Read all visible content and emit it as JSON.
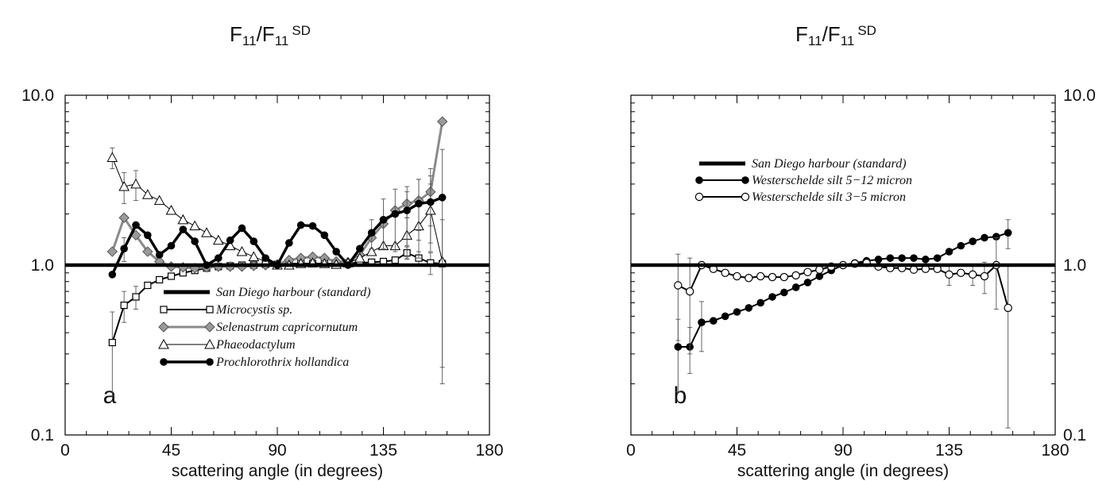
{
  "chart_data": [
    {
      "panel": "a",
      "type": "line",
      "title_main": "F",
      "title_sub1": "11",
      "title_mid": "/F",
      "title_sub2": "11",
      "title_sup": "SD",
      "xlabel": "scattering angle (in degrees)",
      "xlim": [
        0,
        180
      ],
      "xticks": [
        "0",
        "45",
        "90",
        "135",
        "180"
      ],
      "ylim": [
        0.1,
        10
      ],
      "yscale": "log",
      "yticks": [
        "0.1",
        "1.0",
        "10.0"
      ],
      "ytick_side": "left",
      "letter": "a",
      "legend_position": "bottom-center",
      "series": [
        {
          "name": "San Diego harbour (standard)",
          "style": "thick",
          "marker": "none",
          "color": "#000000",
          "x": [
            0,
            180
          ],
          "y": [
            1.0,
            1.0
          ]
        },
        {
          "name": "Microcystis sp.",
          "style": "solid",
          "marker": "open-square",
          "color": "#000000",
          "x": [
            20,
            25,
            30,
            35,
            40,
            45,
            50,
            55,
            60,
            65,
            70,
            75,
            80,
            85,
            90,
            95,
            100,
            105,
            110,
            115,
            120,
            125,
            130,
            135,
            140,
            145,
            150,
            155,
            160
          ],
          "y": [
            0.35,
            0.58,
            0.65,
            0.76,
            0.82,
            0.86,
            0.9,
            0.93,
            0.96,
            0.98,
            0.99,
            1.0,
            1.0,
            1.01,
            1.01,
            1.02,
            1.02,
            1.02,
            1.02,
            1.02,
            1.03,
            1.03,
            1.04,
            1.05,
            1.07,
            1.18,
            1.1,
            1.03,
            1.02
          ],
          "errors": [
            0.18,
            0.12,
            0.1,
            0,
            0,
            0,
            0,
            0,
            0,
            0,
            0,
            0,
            0,
            0,
            0,
            0,
            0,
            0,
            0,
            0,
            0,
            0,
            0,
            0,
            0,
            0.1,
            0.1,
            0.15,
            0
          ]
        },
        {
          "name": "Selenastrum capricornutum",
          "style": "gray",
          "marker": "filled-diamond",
          "color": "#888888",
          "x": [
            20,
            25,
            30,
            35,
            40,
            45,
            50,
            55,
            60,
            65,
            70,
            75,
            80,
            85,
            90,
            95,
            100,
            105,
            110,
            115,
            120,
            125,
            130,
            135,
            140,
            145,
            150,
            155,
            160
          ],
          "y": [
            1.2,
            1.9,
            1.5,
            1.2,
            1.05,
            0.98,
            0.97,
            0.96,
            0.97,
            0.98,
            0.98,
            0.98,
            0.99,
            1.0,
            1.01,
            1.07,
            1.1,
            1.12,
            1.1,
            1.05,
            1.04,
            1.15,
            1.45,
            1.75,
            2.1,
            2.3,
            2.4,
            2.7,
            7.0
          ],
          "errors": [
            0,
            0,
            0,
            0,
            0,
            0,
            0,
            0,
            0,
            0,
            0,
            0,
            0,
            0,
            0,
            0,
            0,
            0,
            0,
            0,
            0,
            0,
            0,
            0,
            0,
            0.4,
            0.8,
            1.0,
            0
          ]
        },
        {
          "name": "Phaeodactylum",
          "style": "thin",
          "marker": "open-triangle",
          "color": "#000000",
          "x": [
            20,
            25,
            30,
            35,
            40,
            45,
            50,
            55,
            60,
            65,
            70,
            75,
            80,
            85,
            90,
            95,
            100,
            105,
            110,
            115,
            120,
            125,
            130,
            135,
            140,
            145,
            150,
            155,
            160
          ],
          "y": [
            4.3,
            2.9,
            3.0,
            2.6,
            2.4,
            2.1,
            1.85,
            1.7,
            1.55,
            1.4,
            1.3,
            1.2,
            1.12,
            1.05,
            1.0,
            1.0,
            1.02,
            1.03,
            1.02,
            1.01,
            1.03,
            1.1,
            1.2,
            1.3,
            1.3,
            1.5,
            1.7,
            2.1,
            1.05
          ],
          "errors": [
            0.6,
            0.6,
            0.6,
            0,
            0,
            0,
            0,
            0,
            0,
            0,
            0,
            0,
            0,
            0,
            0,
            0,
            0,
            0,
            0,
            0,
            0,
            0,
            0,
            0,
            0,
            0.4,
            0.6,
            0.9,
            0.8
          ]
        },
        {
          "name": "Prochlorothrix hollandica",
          "style": "thick",
          "marker": "filled-circle",
          "color": "#000000",
          "x": [
            20,
            25,
            30,
            35,
            40,
            45,
            50,
            55,
            60,
            65,
            70,
            75,
            80,
            85,
            90,
            95,
            100,
            105,
            110,
            115,
            120,
            125,
            130,
            135,
            140,
            145,
            150,
            155,
            160
          ],
          "y": [
            0.88,
            1.25,
            1.72,
            1.5,
            1.15,
            1.3,
            1.62,
            1.38,
            1.0,
            1.1,
            1.4,
            1.65,
            1.38,
            1.1,
            1.0,
            1.35,
            1.72,
            1.7,
            1.5,
            1.2,
            1.0,
            1.25,
            1.55,
            1.85,
            2.0,
            2.1,
            2.3,
            2.35,
            2.5
          ],
          "errors": [
            0,
            0.2,
            0,
            0,
            0,
            0,
            0,
            0,
            0,
            0,
            0,
            0,
            0,
            0,
            0,
            0,
            0,
            0,
            0,
            0,
            0,
            0,
            0.3,
            0.6,
            0.8,
            0.8,
            0.9,
            1.0,
            2.3
          ]
        }
      ]
    },
    {
      "panel": "b",
      "type": "line",
      "title_main": "F",
      "title_sub1": "11",
      "title_mid": "/F",
      "title_sub2": "11",
      "title_sup": "SD",
      "xlabel": "scattering angle (in degrees)",
      "xlim": [
        0,
        180
      ],
      "xticks": [
        "0",
        "45",
        "90",
        "135",
        "180"
      ],
      "ylim": [
        0.1,
        10
      ],
      "yscale": "log",
      "yticks": [
        "0.1",
        "1.0",
        "10.0"
      ],
      "ytick_side": "right",
      "letter": "b",
      "legend_position": "top-center",
      "series": [
        {
          "name": "San Diego harbour (standard)",
          "style": "thick",
          "marker": "none",
          "color": "#000000",
          "x": [
            0,
            180
          ],
          "y": [
            1.0,
            1.0
          ]
        },
        {
          "name": "Westerschelde silt 5−12 micron",
          "style": "solid",
          "marker": "filled-circle",
          "color": "#000000",
          "x": [
            20,
            25,
            30,
            35,
            40,
            45,
            50,
            55,
            60,
            65,
            70,
            75,
            80,
            85,
            90,
            95,
            100,
            105,
            110,
            115,
            120,
            125,
            130,
            135,
            140,
            145,
            150,
            155,
            160
          ],
          "y": [
            0.33,
            0.33,
            0.46,
            0.47,
            0.5,
            0.53,
            0.56,
            0.6,
            0.65,
            0.69,
            0.74,
            0.79,
            0.86,
            0.93,
            1.0,
            1.03,
            1.06,
            1.08,
            1.1,
            1.1,
            1.1,
            1.08,
            1.1,
            1.2,
            1.3,
            1.38,
            1.45,
            1.47,
            1.55
          ],
          "errors": [
            0.15,
            0.1,
            0.15,
            0,
            0,
            0,
            0,
            0,
            0,
            0,
            0,
            0,
            0,
            0,
            0,
            0,
            0,
            0,
            0,
            0,
            0,
            0,
            0,
            0,
            0,
            0,
            0,
            0,
            0.3
          ]
        },
        {
          "name": "Westerschelde silt 3−5 micron",
          "style": "solid",
          "marker": "open-circle",
          "color": "#000000",
          "x": [
            20,
            25,
            30,
            35,
            40,
            45,
            50,
            55,
            60,
            65,
            70,
            75,
            80,
            85,
            90,
            95,
            100,
            105,
            110,
            115,
            120,
            125,
            130,
            135,
            140,
            145,
            150,
            155,
            160
          ],
          "y": [
            0.76,
            0.7,
            1.0,
            0.95,
            0.9,
            0.86,
            0.84,
            0.86,
            0.85,
            0.85,
            0.87,
            0.91,
            0.94,
            0.98,
            1.0,
            1.02,
            1.03,
            0.98,
            0.96,
            0.96,
            0.94,
            0.95,
            0.95,
            0.88,
            0.9,
            0.88,
            0.86,
            1.0,
            0.56
          ],
          "errors": [
            0.4,
            0.4,
            0,
            0,
            0,
            0,
            0,
            0,
            0,
            0,
            0,
            0,
            0,
            0,
            0,
            0,
            0,
            0,
            0,
            0,
            0,
            0,
            0,
            0.12,
            0,
            0.12,
            0.18,
            0.45,
            0.45
          ]
        }
      ]
    }
  ]
}
